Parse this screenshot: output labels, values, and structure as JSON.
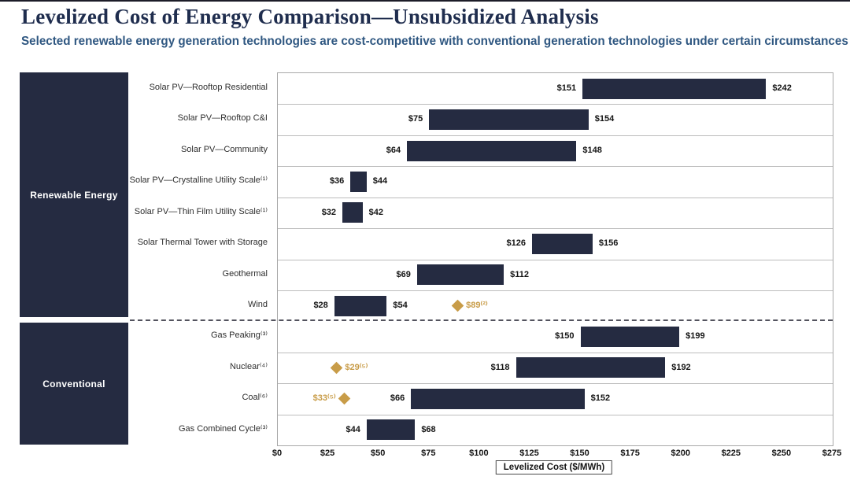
{
  "page": {
    "title": "Levelized Cost of Energy Comparison—Unsubsidized Analysis",
    "subtitle": "Selected renewable energy generation technologies are cost-competitive with conventional generation technologies under certain circumstances"
  },
  "colors": {
    "bar_navy": "#252b41",
    "marker_gold": "#c89c48",
    "title_navy": "#1f2d4e",
    "subtitle_blue": "#2f5781",
    "gridline_gray": "#bcbcbc"
  },
  "chart_data": {
    "type": "bar",
    "subtype": "horizontal-range-bars",
    "title": "Levelized Cost of Energy Comparison—Unsubsidized Analysis",
    "xlabel": "Levelized Cost ($/MWh)",
    "xlim": [
      0,
      275
    ],
    "x_tick_step": 25,
    "x_tick_labels": [
      "$0",
      "$25",
      "$50",
      "$75",
      "$100",
      "$125",
      "$150",
      "$175",
      "$200",
      "$225",
      "$250",
      "$275"
    ],
    "grid": "horizontal-row-dividers",
    "legend_position": "none",
    "groups": [
      {
        "label": "Renewable Energy",
        "rows": [
          {
            "category": "Solar PV—Rooftop Residential",
            "low": 151,
            "high": 242,
            "low_label": "$151",
            "high_label": "$242"
          },
          {
            "category": "Solar PV—Rooftop C&I",
            "low": 75,
            "high": 154,
            "low_label": "$75",
            "high_label": "$154"
          },
          {
            "category": "Solar PV—Community",
            "low": 64,
            "high": 148,
            "low_label": "$64",
            "high_label": "$148"
          },
          {
            "category": "Solar PV—Crystalline Utility Scale⁽¹⁾",
            "low": 36,
            "high": 44,
            "low_label": "$36",
            "high_label": "$44"
          },
          {
            "category": "Solar PV—Thin Film Utility Scale⁽¹⁾",
            "low": 32,
            "high": 42,
            "low_label": "$32",
            "high_label": "$42"
          },
          {
            "category": "Solar Thermal Tower with Storage",
            "low": 126,
            "high": 156,
            "low_label": "$126",
            "high_label": "$156"
          },
          {
            "category": "Geothermal",
            "low": 69,
            "high": 112,
            "low_label": "$69",
            "high_label": "$112"
          },
          {
            "category": "Wind",
            "low": 28,
            "high": 54,
            "low_label": "$28",
            "high_label": "$54",
            "marker": {
              "value": 89,
              "label": "$89⁽²⁾",
              "label_side": "right"
            }
          }
        ]
      },
      {
        "label": "Conventional",
        "rows": [
          {
            "category": "Gas Peaking⁽³⁾",
            "low": 150,
            "high": 199,
            "low_label": "$150",
            "high_label": "$199"
          },
          {
            "category": "Nuclear⁽⁴⁾",
            "low": 118,
            "high": 192,
            "low_label": "$118",
            "high_label": "$192",
            "marker": {
              "value": 29,
              "label": "$29⁽⁵⁾",
              "label_side": "right"
            }
          },
          {
            "category": "Coal⁽⁶⁾",
            "low": 66,
            "high": 152,
            "low_label": "$66",
            "high_label": "$152",
            "marker": {
              "value": 33,
              "label": "$33⁽⁵⁾",
              "label_side": "left"
            }
          },
          {
            "category": "Gas Combined Cycle⁽³⁾",
            "low": 44,
            "high": 68,
            "low_label": "$44",
            "high_label": "$68"
          }
        ]
      }
    ]
  }
}
